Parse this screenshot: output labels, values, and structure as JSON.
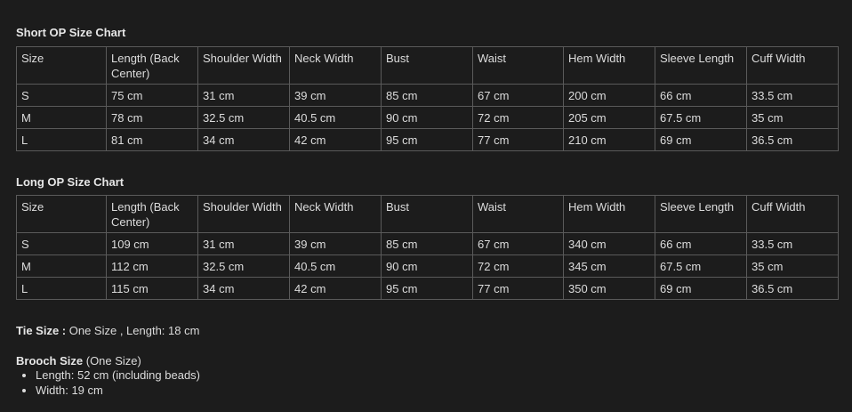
{
  "tables": [
    {
      "title": "Short OP Size Chart",
      "headers": [
        "Size",
        "Length (Back Center)",
        "Shoulder Width",
        "Neck Width",
        "Bust",
        "Waist",
        "Hem Width",
        "Sleeve Length",
        "Cuff Width"
      ],
      "rows": [
        [
          "S",
          "75 cm",
          "31 cm",
          "39 cm",
          "85 cm",
          "67 cm",
          "200 cm",
          "66 cm",
          "33.5 cm"
        ],
        [
          "M",
          "78 cm",
          "32.5 cm",
          "40.5 cm",
          "90 cm",
          "72 cm",
          "205 cm",
          "67.5 cm",
          "35 cm"
        ],
        [
          "L",
          "81 cm",
          "34 cm",
          "42 cm",
          "95 cm",
          "77 cm",
          "210 cm",
          "69 cm",
          "36.5 cm"
        ]
      ]
    },
    {
      "title": "Long OP Size Chart",
      "headers": [
        "Size",
        "Length (Back Center)",
        "Shoulder Width",
        "Neck Width",
        "Bust",
        "Waist",
        "Hem Width",
        "Sleeve Length",
        "Cuff Width"
      ],
      "rows": [
        [
          "S",
          "109 cm",
          "31 cm",
          "39 cm",
          "85 cm",
          "67 cm",
          "340 cm",
          "66 cm",
          "33.5 cm"
        ],
        [
          "M",
          "112 cm",
          "32.5 cm",
          "40.5 cm",
          "90 cm",
          "72 cm",
          "345 cm",
          "67.5 cm",
          "35 cm"
        ],
        [
          "L",
          "115 cm",
          "34 cm",
          "42 cm",
          "95 cm",
          "77 cm",
          "350 cm",
          "69 cm",
          "36.5 cm"
        ]
      ]
    }
  ],
  "tie": {
    "label": "Tie Size :",
    "value": " One Size , Length: 18 cm"
  },
  "brooch": {
    "label": "Brooch Size",
    "note": " (One Size)",
    "items": [
      "Length: 52 cm (including beads)",
      "Width: 19 cm"
    ]
  },
  "colors": {
    "background": "#1c1c1c",
    "text": "#dcdcdc",
    "border": "#5a5a5a"
  }
}
